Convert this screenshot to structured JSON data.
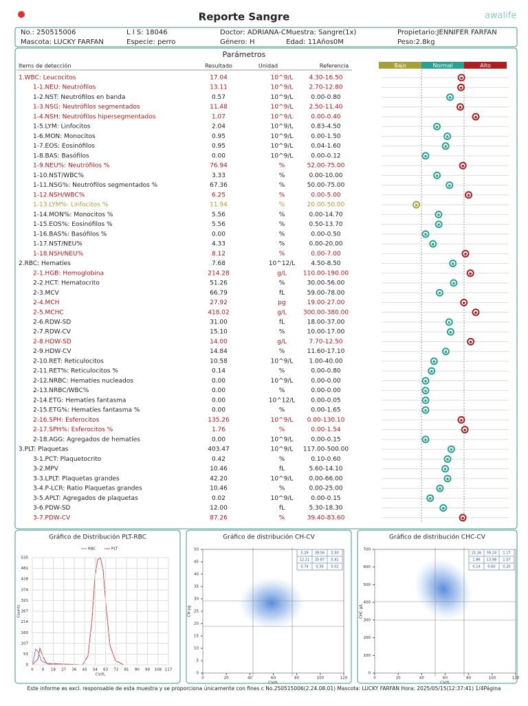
{
  "header": {
    "title": "Reporte Sangre",
    "logo": "awalife",
    "info": [
      [
        "No.: 250515006",
        "L I S: 18046",
        "Doctor: ADRIANA-C",
        "Muestra: Sangre(1x)",
        "Propietario:JENNIFER FARFAN"
      ],
      [
        "Mascota: LUCKY FARFAN",
        "Especie: perro",
        "Género: H",
        "Edad: 11Años0M",
        "Peso:2.8kg"
      ]
    ]
  },
  "section": "Parámetros",
  "table": {
    "columns": [
      "Items de detección",
      "Resultado",
      "Unidad",
      "Referencia"
    ],
    "zones": [
      "Bajo",
      "Normal",
      "Alto"
    ],
    "rows": [
      [
        "1.WBC: Leucocitos",
        "17.04",
        "10^9/L",
        "4.30-16.50"
      ],
      [
        "1-1.NEU: Neutrófilos",
        "13.11",
        "10^9/L",
        "2.70-12.80"
      ],
      [
        "1-2.NST: Neutrófilos en banda",
        "0.57",
        "10^9/L",
        "0.00-0.80"
      ],
      [
        "1-3.NSG: Neutrófilos segmentados",
        "11.48",
        "10^9/L",
        "2.50-11.40"
      ],
      [
        "1-4.NSH: Neutrófilos hipersegmentados",
        "1.07",
        "10^9/L",
        "0.00-0.40"
      ],
      [
        "1-5.LYM: Linfocitos",
        "2.04",
        "10^9/L",
        "0.83-4.50"
      ],
      [
        "1-6.MON: Monocitos",
        "0.95",
        "10^9/L",
        "0.00-1.50"
      ],
      [
        "1-7.EOS: Eosinófilos",
        "0.95",
        "10^9/L",
        "0.04-1.60"
      ],
      [
        "1-8.BAS: Basófilos",
        "0.00",
        "10^9/L",
        "0.00-0.12"
      ],
      [
        "1-9.NEU%: Neutrófilos %",
        "76.94",
        "%",
        "52.00-75.00"
      ],
      [
        "1-10.NST/WBC%",
        "3.33",
        "%",
        "0.00-10.00"
      ],
      [
        "1-11.NSG%: Neutrófilos segmentados %",
        "67.36",
        "%",
        "50.00-75.00"
      ],
      [
        "1-12.NSH/WBC%",
        "6.25",
        "%",
        "0.00-5.00"
      ],
      [
        "1-13.LYM%: Linfocitos %",
        "11.94",
        "%",
        "20.00-50.00"
      ],
      [
        "1-14.MON%: Monocitos %",
        "5.56",
        "%",
        "0.00-14.70"
      ],
      [
        "1-15.EOS%: Eosinófilos %",
        "5.56",
        "%",
        "0.50-13.70"
      ],
      [
        "1-16.BAS%: Basófilos %",
        "0.00",
        "%",
        "0.00-0.50"
      ],
      [
        "1-17.NST/NEU%",
        "4.33",
        "%",
        "0.00-20.00"
      ],
      [
        "1-18.NSH/NEU%",
        "8.12",
        "%",
        "0.00-7.00"
      ],
      [
        "2.RBC: Hematíes",
        "7.68",
        "10^12/L",
        "4.50-8.50"
      ],
      [
        "2-1.HGB: Hemoglobina",
        "214.28",
        "g/L",
        "110.00-190.00"
      ],
      [
        "2-2.HCT: Hematocrito",
        "51.26",
        "%",
        "30.00-56.00"
      ],
      [
        "2-3.MCV",
        "66.79",
        "fL",
        "59.00-78.00"
      ],
      [
        "2-4.MCH",
        "27.92",
        "pg",
        "19.00-27.00"
      ],
      [
        "2-5.MCHC",
        "418.02",
        "g/L",
        "300.00-380.00"
      ],
      [
        "2-6.RDW-SD",
        "31.00",
        "fL",
        "18.00-37.00"
      ],
      [
        "2-7.RDW-CV",
        "15.10",
        "%",
        "10.00-17.00"
      ],
      [
        "2-8.HDW-SD",
        "14.00",
        "g/L",
        "7.70-12.50"
      ],
      [
        "2-9.HDW-CV",
        "14.84",
        "%",
        "11.60-17.10"
      ],
      [
        "2-10.RET: Reticulocitos",
        "10.58",
        "10^9/L",
        "1.00-40.00"
      ],
      [
        "2-11.RET%: Reticulocitos %",
        "0.14",
        "%",
        "0.00-0.80"
      ],
      [
        "2-12.NRBC: Hematíes nucleados",
        "0.00",
        "10^9/L",
        "0.00-0.00"
      ],
      [
        "2-13.NRBC/WBC%",
        "0.00",
        "%",
        "0.00-0.00"
      ],
      [
        "2-14.ETG: Hematíes fantasma",
        "0.00",
        "10^12/L",
        "0.00-0.05"
      ],
      [
        "2-15.ETG%: Hematíes fantasma %",
        "0.00",
        "%",
        "0.00-1.65"
      ],
      [
        "2-16.SPH: Esferocitos",
        "135.26",
        "10^9/L",
        "0.00-130.10"
      ],
      [
        "2-17.SPH%: Esferocitos %",
        "1.76",
        "%",
        "0.00-1.54"
      ],
      [
        "2-18.AGG: Agregados de hematíes",
        "0.00",
        "10^9/L",
        "0.00-0.15"
      ],
      [
        "3.PLT: Plaquetas",
        "403.47",
        "10^9/L",
        "117.00-500.00"
      ],
      [
        "3-1.PCT: Plaquetocrito",
        "0.42",
        "%",
        "0.10-0.60"
      ],
      [
        "3-2.MPV",
        "10.46",
        "fL",
        "5.60-14.10"
      ],
      [
        "3-3.LPLT: Plaquetas grandes",
        "42.20",
        "10^9/L",
        "0.00-66.00"
      ],
      [
        "3-4.P-LCR: Ratio Plaquetas grandes",
        "10.46",
        "%",
        "0.00-25.00"
      ],
      [
        "3-5.APLT: Agregados de plaquetas",
        "0.02",
        "10^9/L",
        "0.00-0.15"
      ],
      [
        "3-6.PDW-SD",
        "12.00",
        "fL",
        "5.30-18.30"
      ],
      [
        "3-7.PDW-CV",
        "87.26",
        "%",
        "39.40-83.60"
      ]
    ]
  },
  "charts": [
    {
      "title": "Gráfico de Distribución PLT-RBC",
      "legend": [
        "RBC",
        "PLT"
      ],
      "ylabel": "Counts",
      "xlabel": "CV/fL",
      "yticks": [
        0,
        53,
        107,
        160,
        214,
        267,
        321,
        374,
        428,
        481,
        535
      ],
      "xticks": [
        0,
        9,
        18,
        27,
        36,
        45,
        54,
        63,
        72,
        81,
        90,
        99,
        108,
        117
      ]
    },
    {
      "title": "Gráfico de distribución CH-CV",
      "ylabel": "CH pg",
      "xlabel": "CV/fL",
      "yticks": [
        0,
        5,
        10,
        15,
        20,
        25,
        30,
        35,
        40,
        45,
        50
      ],
      "xticks": [
        0,
        20,
        40,
        60,
        80,
        100,
        120
      ],
      "table": [
        [
          "5.29",
          "39.56",
          "2.50"
        ],
        [
          "12.21",
          "35.87",
          "0.41"
        ],
        [
          "0.74",
          "0.39",
          "0.02"
        ]
      ]
    },
    {
      "title": "Gráfico de distribución CHC-CV",
      "ylabel": "CHC g/L",
      "xlabel": "CV/fL",
      "yticks": [
        0,
        100,
        200,
        300,
        400,
        500,
        600,
        700
      ],
      "xticks": [
        0,
        20,
        40,
        60,
        80,
        100,
        120
      ],
      "table": [
        [
          "21.26",
          "59.24",
          "1.17"
        ],
        [
          "1.86",
          "13.98",
          "1.57"
        ],
        [
          "0.14",
          "0.60",
          "0.20"
        ]
      ]
    }
  ],
  "footer": "Este informe es excl. responsable de esta muestra y se proporciona únicamente con fines c No.250515006(2.24.08.01) Mascota: LUCKY FARFAN Hora: 2025/05/15(12:37:41) 1/4Página"
}
